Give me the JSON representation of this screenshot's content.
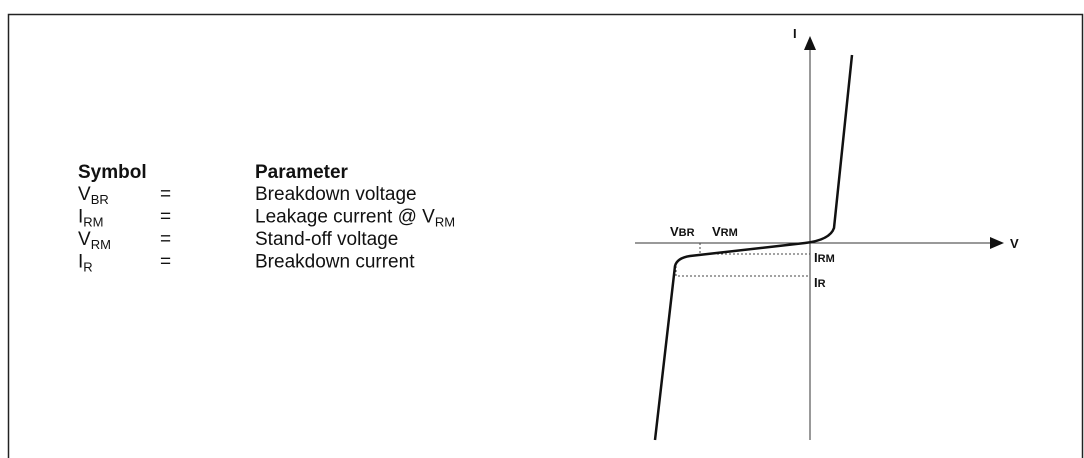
{
  "legend": {
    "header": {
      "symbol": "Symbol",
      "parameter": "Parameter"
    },
    "rows": [
      {
        "symbol": "V",
        "symbol_sub": "BR",
        "equals": "=",
        "parameter": "Breakdown voltage"
      },
      {
        "symbol": "I",
        "symbol_sub": "RM",
        "equals": "=",
        "parameter": "Leakage current @ V",
        "parameter_sub": "RM"
      },
      {
        "symbol": "V",
        "symbol_sub": "RM",
        "equals": "=",
        "parameter": "Stand-off voltage"
      },
      {
        "symbol": "I",
        "symbol_sub": "R",
        "equals": "=",
        "parameter": "Breakdown current"
      }
    ]
  },
  "graph": {
    "axis_i": "I",
    "axis_v": "V",
    "label_vbr": {
      "text": "V",
      "sub": "BR"
    },
    "label_vrm": {
      "text": "V",
      "sub": "RM"
    },
    "label_irm": {
      "text": "I",
      "sub": "RM"
    },
    "label_ir": {
      "text": "I",
      "sub": "R"
    }
  }
}
